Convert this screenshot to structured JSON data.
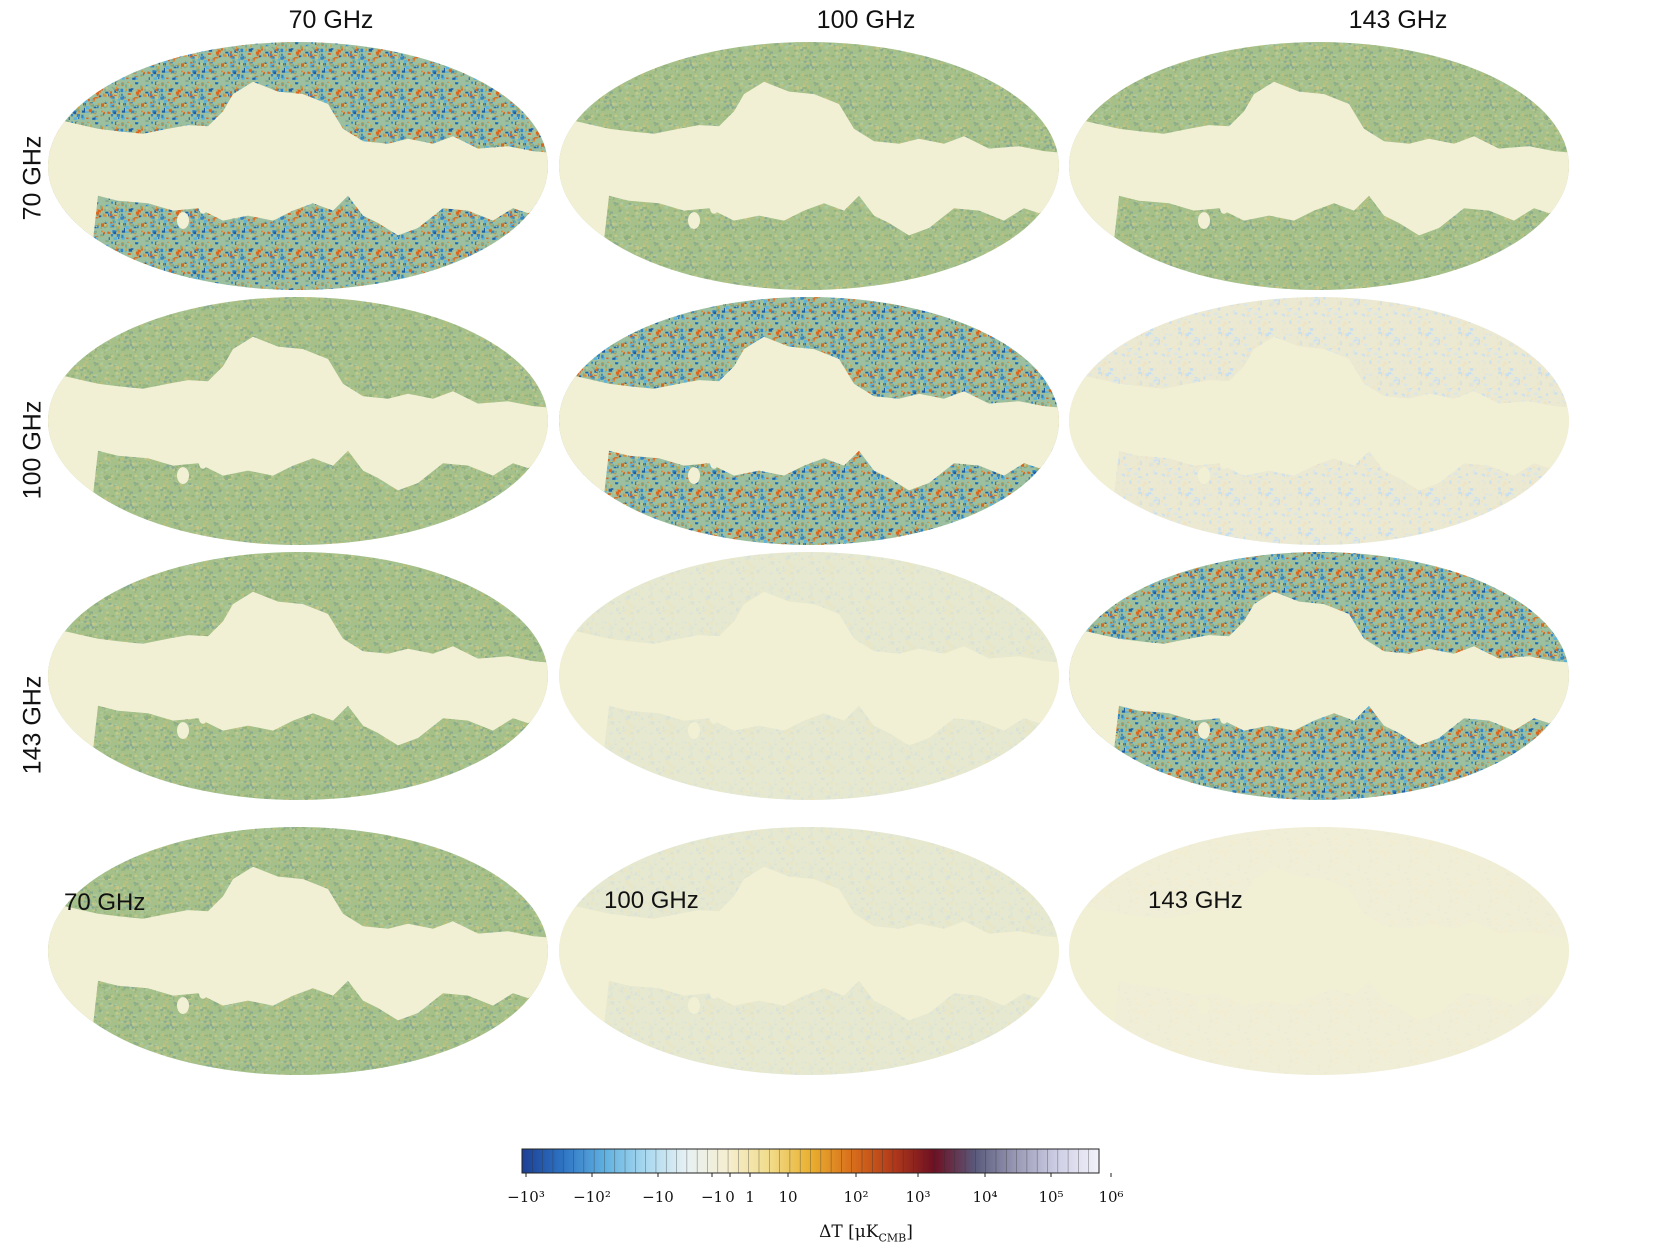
{
  "column_labels": [
    "70 GHz",
    "100 GHz",
    "143 GHz"
  ],
  "row_labels": [
    "70 GHz",
    "100 GHz",
    "143 GHz"
  ],
  "bottom_row_labels": [
    "70 GHz",
    "100 GHz",
    "143 GHz"
  ],
  "colorbar": {
    "tick_labels": [
      "−10³",
      "−10²",
      "−10",
      "−1",
      "0",
      "1",
      "10",
      "10²",
      "10³",
      "10⁴",
      "10⁵",
      "10⁶"
    ],
    "axis_label": "ΔT [μK_CMB]",
    "axis_label_main": "ΔT [μK",
    "axis_label_sub": "CMB",
    "axis_label_close": "]",
    "colors": [
      "#1c3f94",
      "#2e74c4",
      "#5fb0e0",
      "#a9d8ef",
      "#e8f1f3",
      "#f5eed0",
      "#f2dc8a",
      "#e9b030",
      "#d86f1b",
      "#b13a1a",
      "#6e0f22",
      "#5a5a7c",
      "#9a9ab6",
      "#cfcfe6",
      "#f2f2fa"
    ]
  },
  "maps": {
    "background": "#f2f0d4",
    "panels": [
      {
        "row": 0,
        "col": 0,
        "style": "strong"
      },
      {
        "row": 0,
        "col": 1,
        "style": "green"
      },
      {
        "row": 0,
        "col": 2,
        "style": "green"
      },
      {
        "row": 1,
        "col": 0,
        "style": "green"
      },
      {
        "row": 1,
        "col": 1,
        "style": "strong"
      },
      {
        "row": 1,
        "col": 2,
        "style": "faint"
      },
      {
        "row": 2,
        "col": 0,
        "style": "green"
      },
      {
        "row": 2,
        "col": 1,
        "style": "pale"
      },
      {
        "row": 2,
        "col": 2,
        "style": "strong"
      },
      {
        "row": 3,
        "col": 0,
        "style": "green"
      },
      {
        "row": 3,
        "col": 1,
        "style": "pale"
      },
      {
        "row": 3,
        "col": 2,
        "style": "veryfaint"
      }
    ]
  }
}
